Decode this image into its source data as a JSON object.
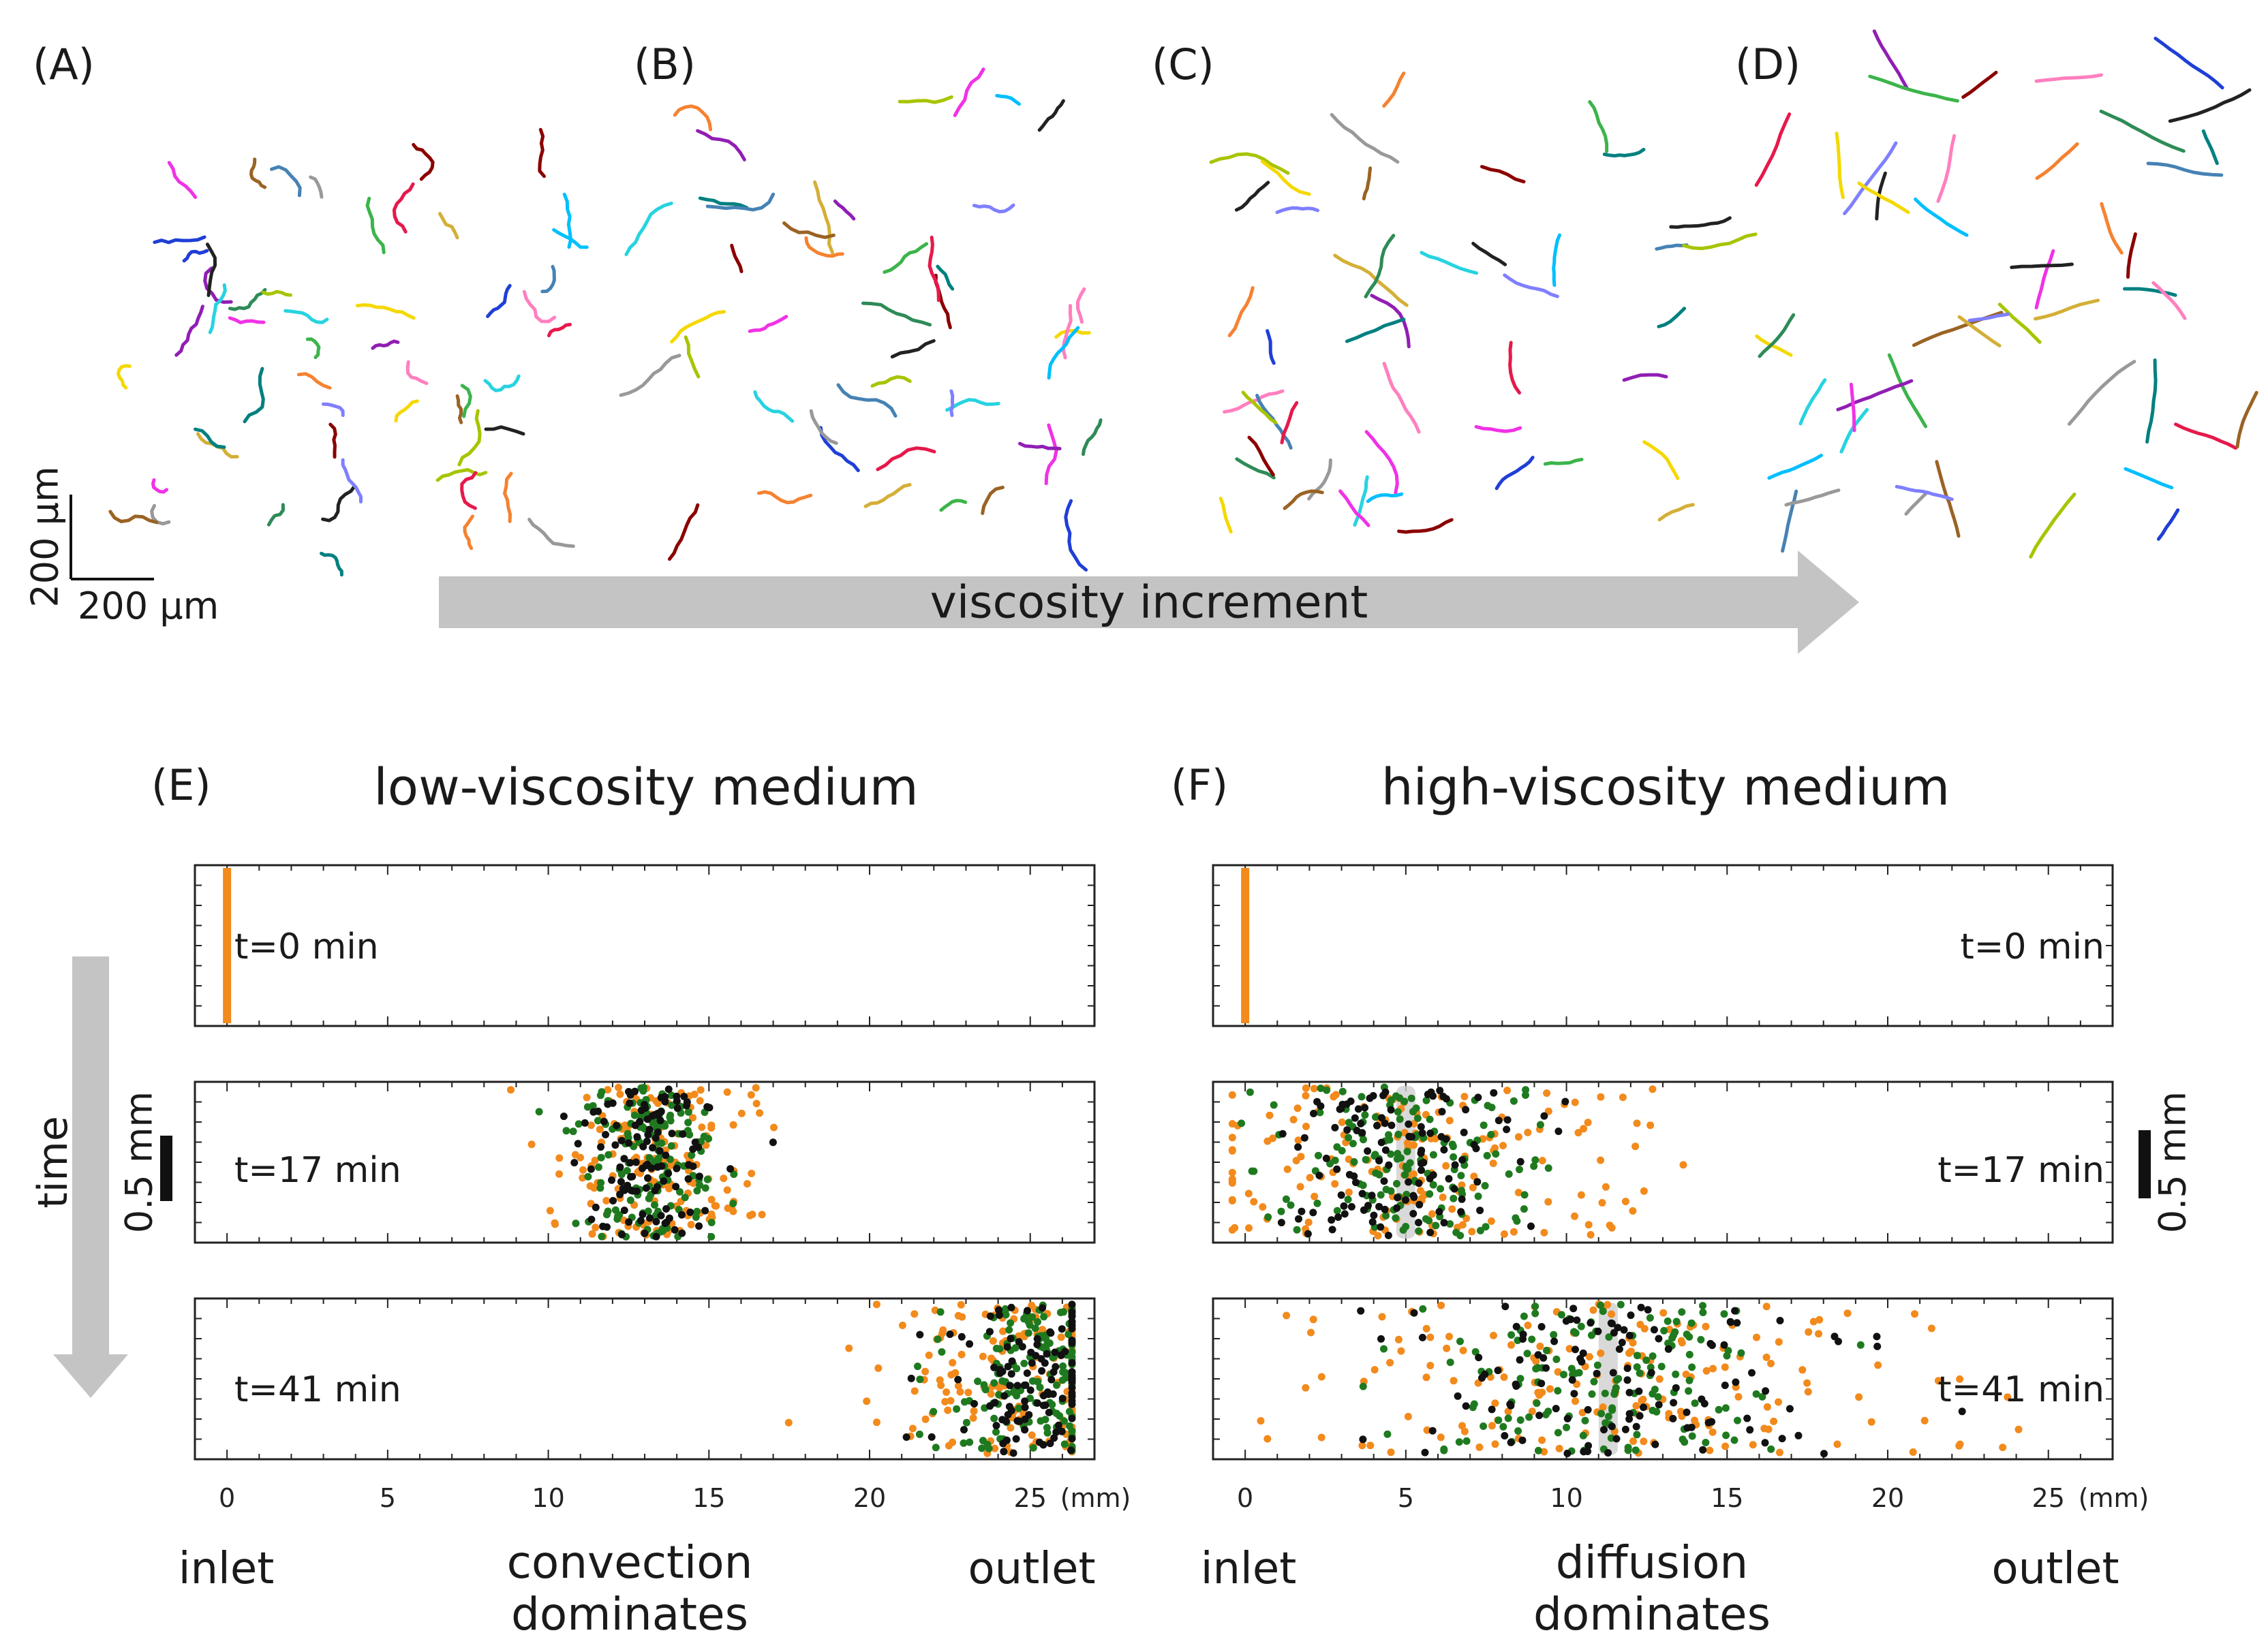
{
  "panels": {
    "a": "(A)",
    "b": "(B)",
    "c": "(C)",
    "d": "(D)",
    "e": "(E)",
    "f": "(F)"
  },
  "scale_bar": {
    "vertical": "200 μm",
    "horizontal": "200 μm"
  },
  "viscosity_arrow": {
    "label": "viscosity increment"
  },
  "time_arrow": {
    "label": "time"
  },
  "low_panel": {
    "title": "low-viscosity medium",
    "frames": [
      "t=0 min",
      "t=17 min",
      "t=41 min"
    ],
    "scale": "0.5 mm",
    "inlet": "inlet",
    "outlet": "outlet",
    "caption": [
      "convection",
      "dominates"
    ]
  },
  "high_panel": {
    "title": "high-viscosity medium",
    "frames": [
      "t=0 min",
      "t=17 min",
      "t=41 min"
    ],
    "scale": "0.5 mm",
    "inlet": "inlet",
    "outlet": "outlet",
    "caption": [
      "diffusion",
      "dominates"
    ]
  },
  "chart_data": [
    {
      "type": "scatter",
      "title": "low-viscosity medium",
      "xlabel": "(mm)",
      "xlim": [
        -1,
        27
      ],
      "xticks": [
        0,
        5,
        10,
        15,
        20,
        25
      ],
      "xticklabels": [
        "0",
        "5",
        "10",
        "15",
        "20",
        "25"
      ],
      "frames": [
        {
          "label": "t=0 min",
          "center": 0,
          "spread": 0,
          "tail": 0
        },
        {
          "label": "t=17 min",
          "center": 13.2,
          "spread": 1.2,
          "tail": 2.2
        },
        {
          "label": "t=41 min",
          "center": 25,
          "spread": 1.6,
          "tail": 3.2
        }
      ],
      "series": [
        {
          "color": "#f28a1c"
        },
        {
          "color": "#1f7a1f"
        },
        {
          "color": "#111111"
        }
      ]
    },
    {
      "type": "scatter",
      "title": "high-viscosity medium",
      "xlabel": "(mm)",
      "xlim": [
        -1,
        27
      ],
      "xticks": [
        0,
        5,
        10,
        15,
        20,
        25
      ],
      "xticklabels": [
        "0",
        "5",
        "10",
        "15",
        "20",
        "25"
      ],
      "frames": [
        {
          "label": "t=0 min",
          "center": 0,
          "spread": 0,
          "tail": 0
        },
        {
          "label": "t=17 min",
          "center": 5,
          "spread": 2.2,
          "tail": 5.5
        },
        {
          "label": "t=41 min",
          "center": 11.3,
          "spread": 3.2,
          "tail": 8.5
        }
      ],
      "series": [
        {
          "color": "#f28a1c"
        },
        {
          "color": "#1f7a1f"
        },
        {
          "color": "#111111"
        }
      ]
    }
  ],
  "colors": {
    "arrow": "#c4c4c4",
    "track_palette": [
      "#e6194b",
      "#3cb44b",
      "#1f3fd6",
      "#f58231",
      "#911eb4",
      "#27d3e0",
      "#f032e6",
      "#a8c400",
      "#8b0000",
      "#008080",
      "#f5d800",
      "#222222",
      "#999999",
      "#9a6324",
      "#00bfff",
      "#7f7fff",
      "#ff7fbf",
      "#2e8b57",
      "#4682b4",
      "#d4af37"
    ]
  }
}
